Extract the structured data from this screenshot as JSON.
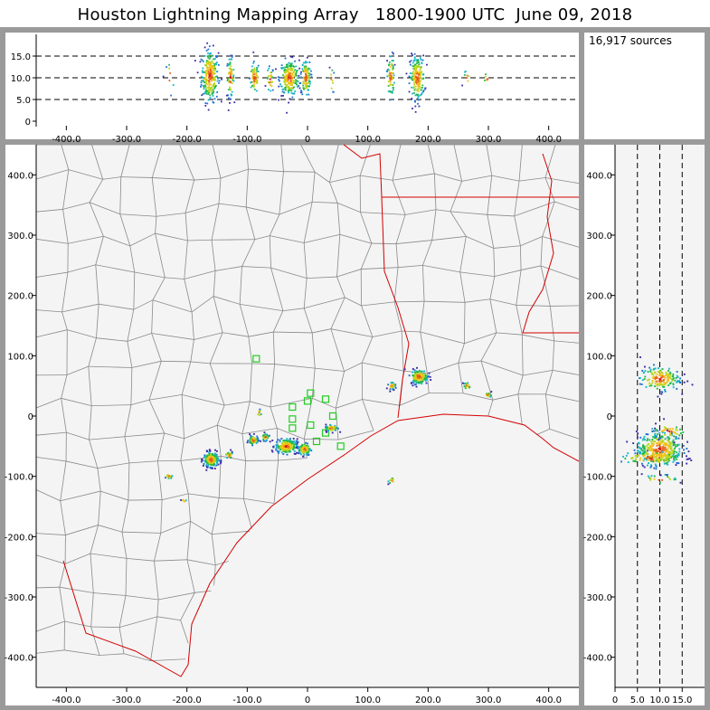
{
  "title": "Houston Lightning Mapping Array   1800-1900 UTC  June 09, 2018",
  "source_count": "16,917 sources",
  "colors": {
    "frame": "#9a9a9a",
    "panel_bg": "#f4f4f4",
    "county": "#8a8a8a",
    "boundary": "#d40000",
    "station": "#22cc22",
    "ref_line": "#000000"
  },
  "chart_data": [
    {
      "type": "scatter",
      "panel": "altitude vs east-west",
      "xlim": [
        -450,
        450
      ],
      "ylim": [
        0,
        20
      ],
      "x_ticks": [
        "-400.0",
        "-300.0",
        "-200.0",
        "-100.0",
        "0",
        "100.0",
        "200.0",
        "300.0",
        "400.0"
      ],
      "x_tick_values": [
        -400,
        -300,
        -200,
        -100,
        0,
        100,
        200,
        300,
        400
      ],
      "y_ticks": [
        "0",
        "5.0",
        "10.0",
        "15.0"
      ],
      "y_tick_values": [
        0,
        5,
        10,
        15
      ],
      "reference_lines": [
        5,
        10,
        15
      ],
      "clusters": [
        {
          "x": -162,
          "y": 10.5,
          "sx": 7,
          "sy": 3.0,
          "n": 260
        },
        {
          "x": -128,
          "y": 10.0,
          "sx": 3,
          "sy": 2.2,
          "n": 70
        },
        {
          "x": -88,
          "y": 10.0,
          "sx": 4,
          "sy": 1.8,
          "n": 70
        },
        {
          "x": -62,
          "y": 9.5,
          "sx": 3,
          "sy": 1.5,
          "n": 30
        },
        {
          "x": -30,
          "y": 10.0,
          "sx": 8,
          "sy": 2.0,
          "n": 240
        },
        {
          "x": -3,
          "y": 10.0,
          "sx": 4,
          "sy": 2.0,
          "n": 110
        },
        {
          "x": 40,
          "y": 9.5,
          "sx": 2,
          "sy": 1.5,
          "n": 12
        },
        {
          "x": 138,
          "y": 10.5,
          "sx": 3,
          "sy": 2.5,
          "n": 70
        },
        {
          "x": 182,
          "y": 10.0,
          "sx": 6,
          "sy": 2.5,
          "n": 200
        },
        {
          "x": 265,
          "y": 10.0,
          "sx": 3,
          "sy": 1.0,
          "n": 8
        },
        {
          "x": 298,
          "y": 10.0,
          "sx": 3,
          "sy": 0.8,
          "n": 6
        },
        {
          "x": -228,
          "y": 10.0,
          "sx": 3,
          "sy": 2.0,
          "n": 8
        }
      ]
    },
    {
      "type": "scatter",
      "panel": "plan view map",
      "xlim": [
        -450,
        450
      ],
      "ylim": [
        -450,
        450
      ],
      "x_ticks": [
        "-400.0",
        "-300.0",
        "-200.0",
        "-100.0",
        "0",
        "100.0",
        "200.0",
        "300.0",
        "400.0"
      ],
      "x_tick_values": [
        -400,
        -300,
        -200,
        -100,
        0,
        100,
        200,
        300,
        400
      ],
      "y_ticks": [
        "400.0",
        "300.0",
        "200.0",
        "100.0",
        "0",
        "-100.0",
        "-200.0",
        "-300.0",
        "-400.0"
      ],
      "y_tick_values": [
        400,
        300,
        200,
        100,
        0,
        -100,
        -200,
        -300,
        -400
      ],
      "clusters": [
        {
          "x": -160,
          "y": -72,
          "sx": 6,
          "sy": 6,
          "n": 200
        },
        {
          "x": -130,
          "y": -65,
          "sx": 3,
          "sy": 3,
          "n": 30
        },
        {
          "x": -90,
          "y": -40,
          "sx": 4,
          "sy": 4,
          "n": 60
        },
        {
          "x": -70,
          "y": -35,
          "sx": 3,
          "sy": 3,
          "n": 25
        },
        {
          "x": -35,
          "y": -50,
          "sx": 9,
          "sy": 6,
          "n": 220
        },
        {
          "x": -5,
          "y": -55,
          "sx": 5,
          "sy": 5,
          "n": 120
        },
        {
          "x": 40,
          "y": -20,
          "sx": 5,
          "sy": 3,
          "n": 60
        },
        {
          "x": 185,
          "y": 65,
          "sx": 7,
          "sy": 6,
          "n": 160
        },
        {
          "x": 140,
          "y": 50,
          "sx": 3,
          "sy": 3,
          "n": 30
        },
        {
          "x": 265,
          "y": 50,
          "sx": 3,
          "sy": 3,
          "n": 20
        },
        {
          "x": 300,
          "y": 35,
          "sx": 3,
          "sy": 2,
          "n": 14
        },
        {
          "x": -230,
          "y": -100,
          "sx": 3,
          "sy": 2,
          "n": 14
        },
        {
          "x": 140,
          "y": -108,
          "sx": 3,
          "sy": 3,
          "n": 10
        },
        {
          "x": -205,
          "y": -140,
          "sx": 2,
          "sy": 2,
          "n": 6
        },
        {
          "x": -80,
          "y": 5,
          "sx": 2,
          "sy": 3,
          "n": 8
        }
      ],
      "stations": [
        {
          "x": -85,
          "y": 95
        },
        {
          "x": -25,
          "y": 15
        },
        {
          "x": 0,
          "y": 25
        },
        {
          "x": 5,
          "y": 38
        },
        {
          "x": 30,
          "y": 28
        },
        {
          "x": -25,
          "y": -5
        },
        {
          "x": -25,
          "y": -20
        },
        {
          "x": 15,
          "y": -42
        },
        {
          "x": 30,
          "y": -28
        },
        {
          "x": 55,
          "y": -50
        },
        {
          "x": 42,
          "y": 0
        },
        {
          "x": 5,
          "y": -15
        }
      ]
    },
    {
      "type": "scatter",
      "panel": "north-south vs altitude",
      "xlim": [
        0,
        20
      ],
      "ylim": [
        -450,
        450
      ],
      "x_ticks": [
        "0",
        "5.0",
        "10.0",
        "15.0"
      ],
      "x_tick_values": [
        0,
        5,
        10,
        15
      ],
      "y_ticks": [
        "400.0",
        "300.0",
        "200.0",
        "100.0",
        "0",
        "-100.0",
        "-200.0",
        "-300.0",
        "-400.0"
      ],
      "y_tick_values": [
        400,
        300,
        200,
        100,
        0,
        -100,
        -200,
        -300,
        -400
      ],
      "reference_lines": [
        5,
        10,
        15
      ],
      "clusters": [
        {
          "x": 10.0,
          "y": 62,
          "sx": 2.2,
          "sy": 10,
          "n": 160
        },
        {
          "x": 10.0,
          "y": -55,
          "sx": 2.5,
          "sy": 14,
          "n": 360
        },
        {
          "x": 8.0,
          "y": -70,
          "sx": 3.5,
          "sy": 6,
          "n": 80
        },
        {
          "x": 12.0,
          "y": -25,
          "sx": 2,
          "sy": 6,
          "n": 40
        },
        {
          "x": 10.0,
          "y": -105,
          "sx": 2,
          "sy": 4,
          "n": 20
        }
      ]
    }
  ]
}
